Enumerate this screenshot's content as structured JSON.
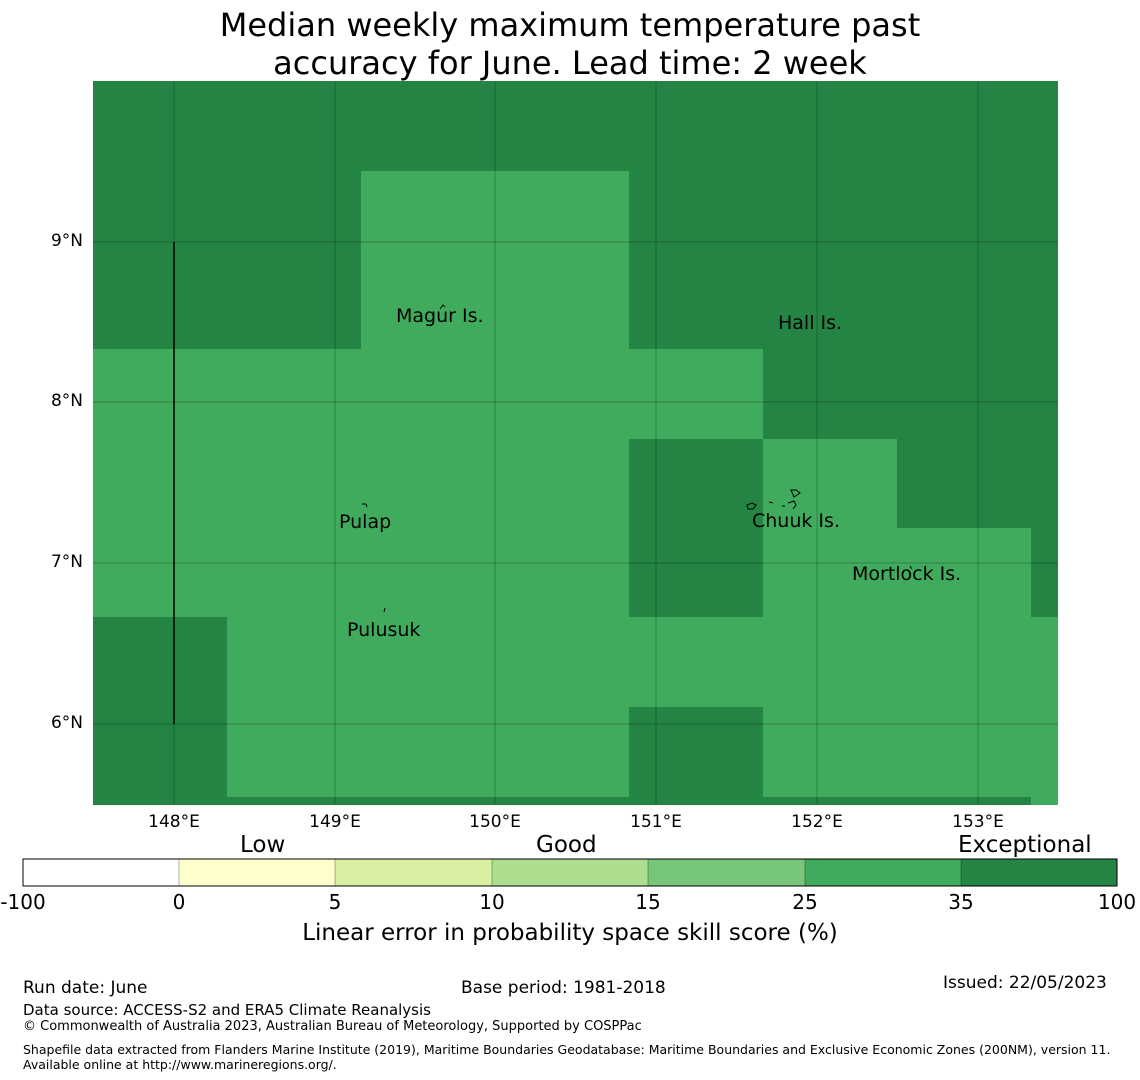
{
  "title_line1": "Median weekly maximum temperature past",
  "title_line2": "accuracy for June. Lead time: 2 week",
  "map": {
    "lat_ticks": [
      "9°N",
      "8°N",
      "7°N",
      "6°N"
    ],
    "lon_ticks": [
      "148°E",
      "149°E",
      "150°E",
      "151°E",
      "152°E",
      "153°E"
    ],
    "places": [
      "Magur Is.",
      "Hall Is.",
      "Pulap",
      "Chuuk Is.",
      "Mortlock Is.",
      "Pulusuk"
    ],
    "colors": {
      "exceptional": "#238443",
      "good": "#41ab5d"
    }
  },
  "colorbar": {
    "categories": [
      "Low",
      "Good",
      "Exceptional"
    ],
    "ticks": [
      "-100",
      "0",
      "5",
      "10",
      "15",
      "25",
      "35",
      "100"
    ],
    "colors": [
      "#ffffff",
      "#ffffcc",
      "#d9f0a3",
      "#addd8e",
      "#78c679",
      "#41ab5d",
      "#238443"
    ],
    "title": "Linear error in probability space skill score (%)"
  },
  "footer": {
    "run_date": "Run date: June",
    "base_period": "Base period: 1981-2018",
    "issued": "Issued: 22/05/2023",
    "data_source": "Data source: ACCESS-S2 and ERA5 Climate Reanalysis",
    "copyright": "© Commonwealth of Australia 2023, Australian Bureau of Meteorology, Supported by COSPPac",
    "shapefile": "Shapefile data extracted from Flanders Marine Institute (2019), Maritime Boundaries Geodatabase: Maritime Boundaries and Exclusive Economic Zones (200NM), version 11. Available online at http://www.marineregions.org/."
  }
}
